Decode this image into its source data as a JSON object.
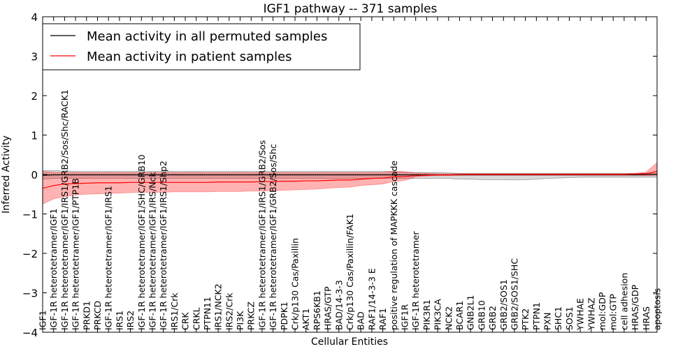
{
  "chart_data": {
    "type": "line",
    "title": "IGF1 pathway -- 371 samples",
    "xlabel": "Cellular Entities",
    "ylabel": "Inferred Activity",
    "ylim": [
      -4,
      4
    ],
    "yticks": [
      -4,
      -3,
      -2,
      -1,
      0,
      1,
      2,
      3,
      4
    ],
    "yticklabels": [
      "−4",
      "−3",
      "−2",
      "−1",
      "0",
      "1",
      "2",
      "3",
      "4"
    ],
    "grid": false,
    "legend_position": "top-left",
    "categories": [
      "IGF1",
      "IGF-1R heterotetramer/IGF1",
      "IGF-1R heterotetramer/IGF1/IRS1/GRB2/Sos/Shc/RACK1",
      "IGF-1R heterotetramer/IGF1/PTP1B",
      "PRKD1",
      "PRKCD",
      "IGF-1R heterotetramer/IGF1/IRS1",
      "IRS1",
      "IRS2",
      "IGF-1R heterotetramer/IGF1/SHC/GRB10",
      "IGF-1R heterotetramer/IGF1/IRS/Nck",
      "IGF-1R heterotetramer/IGF1/IRS1/Shp2",
      "IRS1/Crk",
      "CRK",
      "CRKL",
      "PTPN11",
      "IRS1/NCK2",
      "IRS2/Crk",
      "PI3K",
      "PRKCZ",
      "IGF-1R heterotetramer/IGF1/IRS1/GRB2/Sos",
      "IGF-1R heterotetramer/IGF1/GRB2/Sos/Shc",
      "PDPK1",
      "Crk/p130 Cas/Paxillin",
      "AKT1",
      "RPS6KB1",
      "HRAS/GTP",
      "BAD/14-3-3",
      "Crk/p130 Cas/Paxillin/FAK1",
      "BAD",
      "RAF1/14-3-3 E",
      "RAF1",
      "positive regulation of MAPKKK cascade",
      "IGF1R",
      "IGF-1R heterotetramer",
      "PIK3R1",
      "PIK3CA",
      "NCK2",
      "BCAR1",
      "GNB2L1",
      "GRB10",
      "GRB2",
      "GRB2/SOS1",
      "GRB2/SOS1/SHC",
      "PTK2",
      "PTPN1",
      "PXN",
      "SHC1",
      "SOS1",
      "YWHAE",
      "YWHAZ",
      "mol:GDP",
      "mol:GTP",
      "cell adhesion",
      "HRAS/GDP",
      "HRAS",
      "apoptosis"
    ],
    "series": [
      {
        "name": "Mean activity in all permuted samples",
        "color": "#000000",
        "values": [
          -0.02,
          -0.01,
          -0.01,
          -0.01,
          -0.01,
          -0.01,
          -0.01,
          -0.01,
          -0.01,
          -0.01,
          -0.01,
          -0.01,
          -0.01,
          -0.01,
          -0.01,
          -0.01,
          -0.01,
          -0.01,
          -0.01,
          -0.01,
          -0.01,
          -0.01,
          -0.01,
          -0.01,
          -0.01,
          -0.01,
          -0.01,
          -0.01,
          -0.01,
          -0.01,
          -0.01,
          -0.01,
          -0.01,
          -0.01,
          -0.01,
          -0.01,
          -0.01,
          -0.01,
          -0.01,
          -0.01,
          -0.01,
          -0.01,
          -0.01,
          -0.01,
          -0.01,
          -0.01,
          -0.01,
          -0.01,
          -0.01,
          -0.01,
          -0.01,
          -0.01,
          -0.01,
          -0.01,
          -0.01,
          0.0,
          0.0
        ],
        "band_lower": [
          -0.12,
          -0.1,
          -0.1,
          -0.1,
          -0.1,
          -0.1,
          -0.1,
          -0.1,
          -0.1,
          -0.1,
          -0.1,
          -0.1,
          -0.1,
          -0.1,
          -0.1,
          -0.1,
          -0.1,
          -0.1,
          -0.1,
          -0.1,
          -0.1,
          -0.1,
          -0.1,
          -0.1,
          -0.1,
          -0.1,
          -0.1,
          -0.1,
          -0.1,
          -0.1,
          -0.1,
          -0.1,
          -0.1,
          -0.1,
          -0.1,
          -0.1,
          -0.1,
          -0.1,
          -0.12,
          -0.12,
          -0.13,
          -0.13,
          -0.13,
          -0.14,
          -0.13,
          -0.12,
          -0.1,
          -0.09,
          -0.08,
          -0.07,
          -0.07,
          -0.07,
          -0.07,
          -0.07,
          -0.07,
          -0.07,
          -0.07
        ],
        "band_upper": [
          0.1,
          0.1,
          0.09,
          0.08,
          0.08,
          0.08,
          0.08,
          0.08,
          0.08,
          0.08,
          0.08,
          0.08,
          0.08,
          0.08,
          0.08,
          0.08,
          0.08,
          0.08,
          0.08,
          0.08,
          0.08,
          0.08,
          0.08,
          0.08,
          0.08,
          0.08,
          0.08,
          0.08,
          0.08,
          0.08,
          0.08,
          0.08,
          0.08,
          0.06,
          0.05,
          0.05,
          0.05,
          0.04,
          0.03,
          0.03,
          0.03,
          0.03,
          0.03,
          0.03,
          0.03,
          0.03,
          0.03,
          0.03,
          0.03,
          0.03,
          0.03,
          0.03,
          0.03,
          0.03,
          0.03,
          0.03,
          0.03
        ]
      },
      {
        "name": "Mean activity in patient samples",
        "color": "#ff0000",
        "values": [
          -0.35,
          -0.28,
          -0.24,
          -0.23,
          -0.22,
          -0.21,
          -0.21,
          -0.21,
          -0.2,
          -0.2,
          -0.2,
          -0.2,
          -0.2,
          -0.2,
          -0.2,
          -0.2,
          -0.19,
          -0.19,
          -0.19,
          -0.19,
          -0.18,
          -0.18,
          -0.17,
          -0.17,
          -0.16,
          -0.16,
          -0.15,
          -0.14,
          -0.14,
          -0.12,
          -0.1,
          -0.09,
          -0.06,
          -0.05,
          -0.03,
          -0.02,
          -0.01,
          -0.01,
          0.0,
          0.0,
          0.0,
          0.0,
          0.0,
          0.0,
          0.0,
          0.0,
          0.0,
          0.0,
          0.0,
          0.0,
          0.0,
          0.0,
          0.0,
          0.0,
          0.01,
          0.02,
          0.08
        ],
        "band_lower": [
          -0.75,
          -0.62,
          -0.56,
          -0.52,
          -0.5,
          -0.49,
          -0.48,
          -0.47,
          -0.46,
          -0.45,
          -0.45,
          -0.45,
          -0.44,
          -0.44,
          -0.44,
          -0.44,
          -0.43,
          -0.43,
          -0.43,
          -0.42,
          -0.42,
          -0.41,
          -0.4,
          -0.39,
          -0.38,
          -0.37,
          -0.35,
          -0.33,
          -0.32,
          -0.28,
          -0.26,
          -0.24,
          -0.18,
          -0.15,
          -0.06,
          -0.04,
          -0.03,
          -0.03,
          -0.02,
          -0.02,
          -0.02,
          -0.02,
          -0.02,
          -0.02,
          -0.02,
          -0.02,
          -0.02,
          -0.02,
          -0.02,
          -0.02,
          -0.02,
          -0.02,
          -0.02,
          -0.02,
          -0.02,
          -0.03,
          -0.02
        ],
        "band_upper": [
          0.08,
          0.06,
          0.05,
          0.05,
          0.05,
          0.05,
          0.05,
          0.05,
          0.05,
          0.05,
          0.05,
          0.05,
          0.05,
          0.05,
          0.05,
          0.05,
          0.05,
          0.05,
          0.05,
          0.05,
          0.05,
          0.05,
          0.05,
          0.05,
          0.05,
          0.05,
          0.05,
          0.05,
          0.05,
          0.05,
          0.05,
          0.05,
          0.08,
          0.07,
          0.04,
          0.03,
          0.02,
          0.02,
          0.02,
          0.02,
          0.02,
          0.02,
          0.02,
          0.02,
          0.02,
          0.02,
          0.02,
          0.02,
          0.02,
          0.02,
          0.02,
          0.02,
          0.02,
          0.02,
          0.03,
          0.06,
          0.3
        ]
      }
    ]
  }
}
